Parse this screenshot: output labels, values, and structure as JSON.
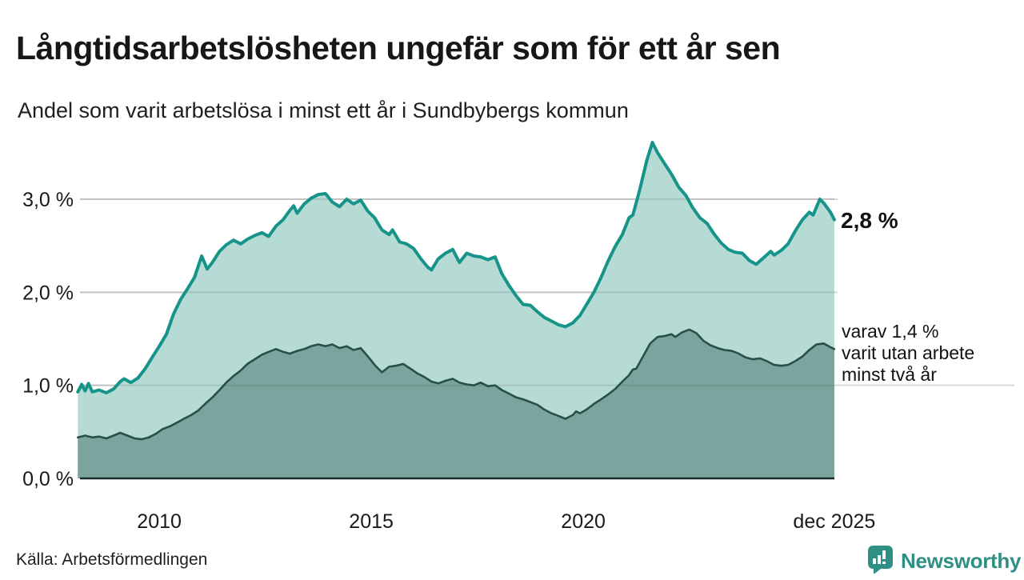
{
  "title": "Långtidsarbetslösheten ungefär som för ett år sen",
  "subtitle": "Andel som varit arbetslösa i minst ett år i Sundbybergs kommun",
  "source": "Källa: Arbetsförmedlingen",
  "branding": {
    "name": "Newsworthy",
    "color": "#2e8f85",
    "icon": "bar-chart-speech-bubble-icon"
  },
  "colors": {
    "line_total": "#17948a",
    "fill_total": "#b6dad4",
    "line_two_years": "#275049",
    "fill_two_years": "#7aa49d",
    "grid": "#d9d9d9",
    "axis": "#1f2d2b",
    "text": "#1a1a1a"
  },
  "chart_data": {
    "type": "area",
    "unit": "%",
    "title": "Långtidsarbetslösheten ungefär som för ett år sen",
    "subtitle": "Andel som varit arbetslösa i minst ett år i Sundbybergs kommun",
    "grid": true,
    "x_axis": {
      "start": 2008.13,
      "end": 2025.92,
      "ticks": [
        {
          "label": "2010",
          "year": 2010
        },
        {
          "label": "2015",
          "year": 2015
        },
        {
          "label": "2020",
          "year": 2020
        },
        {
          "label": "dec 2025",
          "year": 2025.92
        }
      ]
    },
    "y_axis": {
      "ylim": [
        0,
        3.7
      ],
      "ticks": [
        {
          "label": "0,0 %",
          "value": 0.0
        },
        {
          "label": "1,0 %",
          "value": 1.0
        },
        {
          "label": "2,0 %",
          "value": 2.0
        },
        {
          "label": "3,0 %",
          "value": 3.0
        }
      ]
    },
    "annotations": {
      "end_value_label": "2,8 %",
      "note": "varav 1,4 %\nvarit utan arbete\nminst två år"
    },
    "series": [
      {
        "name": "Andel arbetslösa minst ett år",
        "end_value": 2.8,
        "points": [
          [
            2008.08,
            0.93
          ],
          [
            2008.17,
            1.01
          ],
          [
            2008.25,
            0.94
          ],
          [
            2008.33,
            1.02
          ],
          [
            2008.42,
            0.93
          ],
          [
            2008.58,
            0.95
          ],
          [
            2008.75,
            0.92
          ],
          [
            2008.92,
            0.96
          ],
          [
            2009.08,
            1.04
          ],
          [
            2009.17,
            1.07
          ],
          [
            2009.33,
            1.03
          ],
          [
            2009.5,
            1.08
          ],
          [
            2009.67,
            1.18
          ],
          [
            2009.83,
            1.3
          ],
          [
            2010,
            1.42
          ],
          [
            2010.17,
            1.55
          ],
          [
            2010.33,
            1.76
          ],
          [
            2010.5,
            1.92
          ],
          [
            2010.67,
            2.04
          ],
          [
            2010.83,
            2.16
          ],
          [
            2011,
            2.39
          ],
          [
            2011.13,
            2.25
          ],
          [
            2011.25,
            2.32
          ],
          [
            2011.42,
            2.44
          ],
          [
            2011.58,
            2.51
          ],
          [
            2011.75,
            2.56
          ],
          [
            2011.92,
            2.52
          ],
          [
            2012.08,
            2.57
          ],
          [
            2012.25,
            2.61
          ],
          [
            2012.42,
            2.64
          ],
          [
            2012.58,
            2.6
          ],
          [
            2012.75,
            2.71
          ],
          [
            2012.92,
            2.78
          ],
          [
            2013.08,
            2.88
          ],
          [
            2013.17,
            2.93
          ],
          [
            2013.25,
            2.85
          ],
          [
            2013.42,
            2.95
          ],
          [
            2013.58,
            3.01
          ],
          [
            2013.75,
            3.05
          ],
          [
            2013.92,
            3.06
          ],
          [
            2014.08,
            2.97
          ],
          [
            2014.25,
            2.92
          ],
          [
            2014.42,
            3.0
          ],
          [
            2014.58,
            2.95
          ],
          [
            2014.75,
            2.99
          ],
          [
            2014.92,
            2.87
          ],
          [
            2015.08,
            2.8
          ],
          [
            2015.25,
            2.67
          ],
          [
            2015.42,
            2.62
          ],
          [
            2015.5,
            2.67
          ],
          [
            2015.67,
            2.54
          ],
          [
            2015.83,
            2.52
          ],
          [
            2016,
            2.47
          ],
          [
            2016.17,
            2.36
          ],
          [
            2016.33,
            2.27
          ],
          [
            2016.42,
            2.24
          ],
          [
            2016.58,
            2.36
          ],
          [
            2016.75,
            2.42
          ],
          [
            2016.92,
            2.46
          ],
          [
            2017.08,
            2.32
          ],
          [
            2017.25,
            2.42
          ],
          [
            2017.42,
            2.39
          ],
          [
            2017.58,
            2.38
          ],
          [
            2017.75,
            2.35
          ],
          [
            2017.92,
            2.38
          ],
          [
            2018.08,
            2.2
          ],
          [
            2018.25,
            2.07
          ],
          [
            2018.42,
            1.96
          ],
          [
            2018.58,
            1.87
          ],
          [
            2018.75,
            1.86
          ],
          [
            2018.92,
            1.79
          ],
          [
            2019.08,
            1.73
          ],
          [
            2019.25,
            1.69
          ],
          [
            2019.42,
            1.65
          ],
          [
            2019.58,
            1.63
          ],
          [
            2019.75,
            1.67
          ],
          [
            2019.92,
            1.75
          ],
          [
            2020.08,
            1.87
          ],
          [
            2020.25,
            2.0
          ],
          [
            2020.42,
            2.16
          ],
          [
            2020.58,
            2.33
          ],
          [
            2020.75,
            2.49
          ],
          [
            2020.92,
            2.62
          ],
          [
            2021.08,
            2.8
          ],
          [
            2021.17,
            2.83
          ],
          [
            2021.33,
            3.1
          ],
          [
            2021.5,
            3.42
          ],
          [
            2021.63,
            3.61
          ],
          [
            2021.75,
            3.5
          ],
          [
            2021.92,
            3.38
          ],
          [
            2022.08,
            3.27
          ],
          [
            2022.25,
            3.13
          ],
          [
            2022.42,
            3.04
          ],
          [
            2022.58,
            2.91
          ],
          [
            2022.75,
            2.8
          ],
          [
            2022.92,
            2.74
          ],
          [
            2023.08,
            2.63
          ],
          [
            2023.25,
            2.53
          ],
          [
            2023.42,
            2.46
          ],
          [
            2023.58,
            2.43
          ],
          [
            2023.75,
            2.42
          ],
          [
            2023.92,
            2.34
          ],
          [
            2024.08,
            2.3
          ],
          [
            2024.25,
            2.37
          ],
          [
            2024.42,
            2.44
          ],
          [
            2024.5,
            2.4
          ],
          [
            2024.67,
            2.45
          ],
          [
            2024.83,
            2.52
          ],
          [
            2025,
            2.66
          ],
          [
            2025.17,
            2.78
          ],
          [
            2025.33,
            2.86
          ],
          [
            2025.42,
            2.83
          ],
          [
            2025.58,
            3.0
          ],
          [
            2025.67,
            2.96
          ],
          [
            2025.83,
            2.86
          ],
          [
            2025.92,
            2.78
          ]
        ]
      },
      {
        "name": "varav utan arbete minst två år",
        "end_value": 1.4,
        "points": [
          [
            2008.08,
            0.44
          ],
          [
            2008.25,
            0.46
          ],
          [
            2008.42,
            0.44
          ],
          [
            2008.58,
            0.45
          ],
          [
            2008.75,
            0.43
          ],
          [
            2008.92,
            0.46
          ],
          [
            2009.08,
            0.49
          ],
          [
            2009.25,
            0.46
          ],
          [
            2009.42,
            0.43
          ],
          [
            2009.58,
            0.42
          ],
          [
            2009.75,
            0.44
          ],
          [
            2009.92,
            0.48
          ],
          [
            2010.08,
            0.53
          ],
          [
            2010.25,
            0.56
          ],
          [
            2010.42,
            0.6
          ],
          [
            2010.58,
            0.64
          ],
          [
            2010.75,
            0.68
          ],
          [
            2010.92,
            0.73
          ],
          [
            2011.08,
            0.8
          ],
          [
            2011.25,
            0.87
          ],
          [
            2011.42,
            0.95
          ],
          [
            2011.58,
            1.03
          ],
          [
            2011.75,
            1.1
          ],
          [
            2011.92,
            1.16
          ],
          [
            2012.08,
            1.23
          ],
          [
            2012.25,
            1.28
          ],
          [
            2012.42,
            1.33
          ],
          [
            2012.58,
            1.36
          ],
          [
            2012.75,
            1.39
          ],
          [
            2012.92,
            1.36
          ],
          [
            2013.08,
            1.34
          ],
          [
            2013.25,
            1.37
          ],
          [
            2013.42,
            1.39
          ],
          [
            2013.58,
            1.42
          ],
          [
            2013.75,
            1.44
          ],
          [
            2013.92,
            1.42
          ],
          [
            2014.08,
            1.44
          ],
          [
            2014.25,
            1.4
          ],
          [
            2014.42,
            1.42
          ],
          [
            2014.58,
            1.38
          ],
          [
            2014.75,
            1.4
          ],
          [
            2014.92,
            1.31
          ],
          [
            2015.08,
            1.22
          ],
          [
            2015.25,
            1.14
          ],
          [
            2015.42,
            1.2
          ],
          [
            2015.58,
            1.21
          ],
          [
            2015.75,
            1.23
          ],
          [
            2015.92,
            1.18
          ],
          [
            2016.08,
            1.13
          ],
          [
            2016.25,
            1.09
          ],
          [
            2016.42,
            1.04
          ],
          [
            2016.58,
            1.02
          ],
          [
            2016.75,
            1.05
          ],
          [
            2016.92,
            1.07
          ],
          [
            2017.08,
            1.03
          ],
          [
            2017.25,
            1.01
          ],
          [
            2017.42,
            1.0
          ],
          [
            2017.58,
            1.03
          ],
          [
            2017.75,
            0.99
          ],
          [
            2017.92,
            1.0
          ],
          [
            2018.08,
            0.95
          ],
          [
            2018.25,
            0.91
          ],
          [
            2018.42,
            0.87
          ],
          [
            2018.58,
            0.85
          ],
          [
            2018.75,
            0.82
          ],
          [
            2018.92,
            0.79
          ],
          [
            2019.08,
            0.74
          ],
          [
            2019.25,
            0.7
          ],
          [
            2019.42,
            0.67
          ],
          [
            2019.58,
            0.64
          ],
          [
            2019.75,
            0.68
          ],
          [
            2019.83,
            0.72
          ],
          [
            2019.92,
            0.7
          ],
          [
            2020.08,
            0.74
          ],
          [
            2020.25,
            0.8
          ],
          [
            2020.42,
            0.85
          ],
          [
            2020.58,
            0.9
          ],
          [
            2020.75,
            0.96
          ],
          [
            2020.92,
            1.04
          ],
          [
            2021.08,
            1.11
          ],
          [
            2021.17,
            1.17
          ],
          [
            2021.25,
            1.18
          ],
          [
            2021.42,
            1.32
          ],
          [
            2021.58,
            1.45
          ],
          [
            2021.75,
            1.52
          ],
          [
            2021.92,
            1.53
          ],
          [
            2022.08,
            1.55
          ],
          [
            2022.17,
            1.52
          ],
          [
            2022.33,
            1.57
          ],
          [
            2022.5,
            1.6
          ],
          [
            2022.67,
            1.56
          ],
          [
            2022.83,
            1.48
          ],
          [
            2023,
            1.43
          ],
          [
            2023.17,
            1.4
          ],
          [
            2023.33,
            1.38
          ],
          [
            2023.5,
            1.37
          ],
          [
            2023.67,
            1.34
          ],
          [
            2023.83,
            1.3
          ],
          [
            2024,
            1.28
          ],
          [
            2024.17,
            1.29
          ],
          [
            2024.33,
            1.26
          ],
          [
            2024.5,
            1.22
          ],
          [
            2024.67,
            1.21
          ],
          [
            2024.83,
            1.22
          ],
          [
            2025,
            1.26
          ],
          [
            2025.17,
            1.31
          ],
          [
            2025.33,
            1.38
          ],
          [
            2025.5,
            1.44
          ],
          [
            2025.67,
            1.45
          ],
          [
            2025.83,
            1.41
          ],
          [
            2025.92,
            1.39
          ]
        ]
      }
    ]
  }
}
